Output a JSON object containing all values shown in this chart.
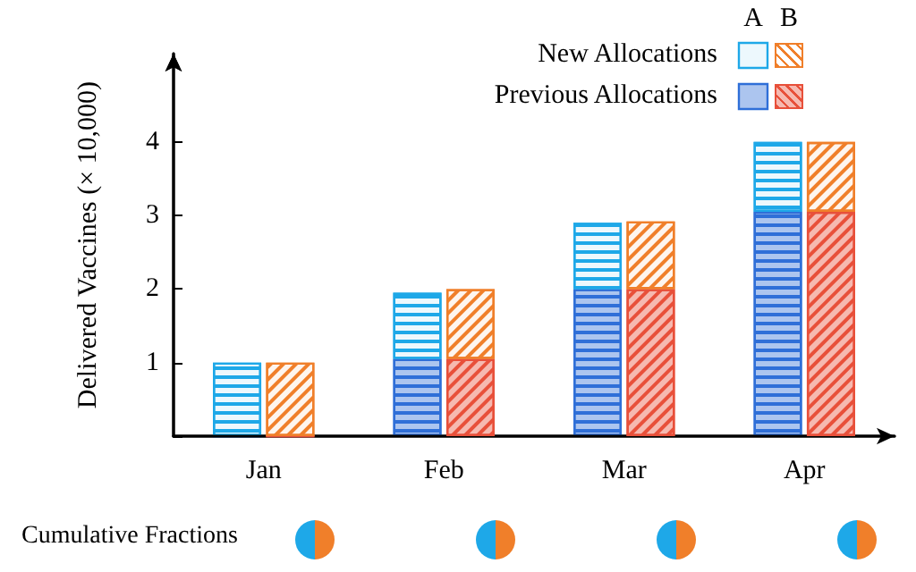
{
  "chart_data": [
    {
      "type": "bar",
      "stacked": true,
      "title": "A",
      "ylabel": "Delivered Vaccines (× 10,000)",
      "categories": [
        "Jan",
        "Feb",
        "Mar",
        "Apr"
      ],
      "series": [
        {
          "name": "Previous Allocations",
          "color": "#2f6fd8",
          "values": [
            0,
            1.05,
            2.0,
            3.05
          ]
        },
        {
          "name": "New Allocations",
          "color": "#1ea8e8",
          "values": [
            1.0,
            0.9,
            0.9,
            0.95
          ]
        }
      ],
      "ylim": [
        0,
        5.2
      ],
      "yticks": [
        {
          "value": 0,
          "label": null
        },
        1,
        2,
        3,
        4
      ],
      "legend": "top right",
      "annotations": [
        "Cumulative Fractions"
      ]
    },
    {
      "type": "bar",
      "stacked": true,
      "title": "B",
      "series": [
        {
          "color": "#e8503a",
          "values": [
            0,
            1.05,
            2.0,
            3.05
          ]
        },
        {
          "color": "#f07f2a",
          "values": [
            1.0,
            0.95,
            0.92,
            0.95
          ]
        }
      ],
      "ylim": [
        0,
        5.2
      ],
      "yticks": [
        {
          "value": 0,
          "label": null
        },
        1,
        2,
        3,
        4
      ],
      "tick_labels": false
    }
  ]
}
